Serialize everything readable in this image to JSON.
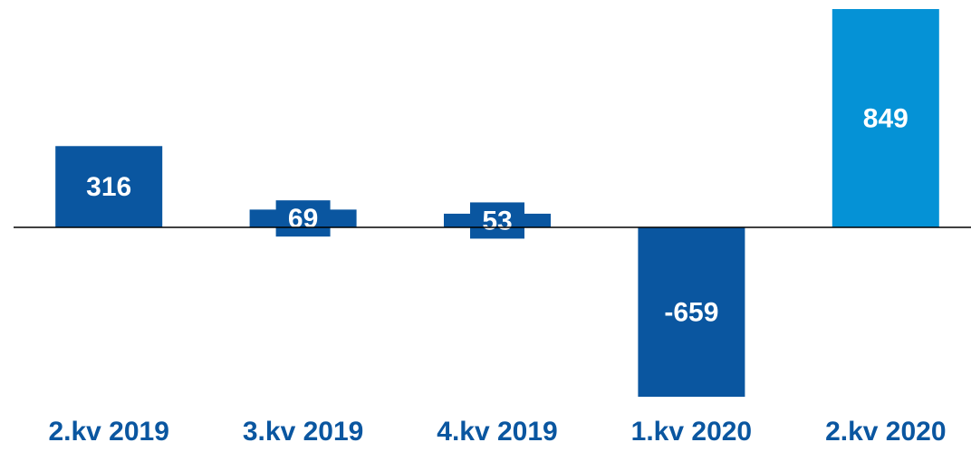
{
  "chart_data": {
    "type": "bar",
    "categories": [
      "2.kv 2019",
      "3.kv 2019",
      "4.kv 2019",
      "1.kv 2020",
      "2.kv 2020"
    ],
    "values": [
      316,
      69,
      53,
      -659,
      849
    ],
    "colors": [
      "#0a56a0",
      "#0a56a0",
      "#0a56a0",
      "#0a56a0",
      "#0592d6"
    ]
  }
}
